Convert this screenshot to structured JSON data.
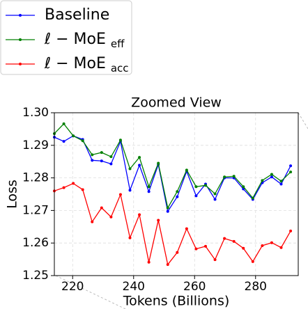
{
  "chart_data": {
    "type": "line",
    "title": "Zoomed View",
    "x_label": "Tokens (Billions)",
    "y_label": "Loss",
    "x": [
      214.0,
      217.1,
      220.2,
      223.3,
      226.4,
      229.5,
      232.6,
      235.7,
      238.8,
      241.9,
      245.0,
      248.1,
      251.2,
      254.3,
      257.4,
      260.5,
      263.6,
      266.7,
      269.8,
      272.9,
      276.0,
      279.1,
      282.2,
      285.3,
      288.4,
      291.5
    ],
    "series": [
      {
        "name": "Baseline",
        "color": "#0000ff",
        "values": [
          1.2925,
          1.2912,
          1.2929,
          1.2918,
          1.2854,
          1.2852,
          1.2843,
          1.2912,
          1.2762,
          1.2839,
          1.2758,
          1.2841,
          1.2697,
          1.2742,
          1.282,
          1.2745,
          1.2781,
          1.2734,
          1.28,
          1.28,
          1.2766,
          1.2734,
          1.2785,
          1.2803,
          1.2781,
          1.2837
        ]
      },
      {
        "name": "ℓ − MoE eff",
        "color": "#008000",
        "values": [
          1.2936,
          1.2966,
          1.2929,
          1.2914,
          1.2871,
          1.2878,
          1.2865,
          1.2916,
          1.2828,
          1.2863,
          1.2773,
          1.2845,
          1.2708,
          1.2758,
          1.2824,
          1.2773,
          1.2777,
          1.2751,
          1.2803,
          1.2805,
          1.2773,
          1.2738,
          1.2792,
          1.2811,
          1.279,
          1.2818
        ]
      },
      {
        "name": "ℓ − MoE acc",
        "color": "#ff0000",
        "values": [
          1.276,
          1.277,
          1.2783,
          1.2764,
          1.2665,
          1.2708,
          1.268,
          1.2749,
          1.2616,
          1.2687,
          1.2541,
          1.267,
          1.2534,
          1.2571,
          1.2644,
          1.2582,
          1.259,
          1.2549,
          1.2614,
          1.2605,
          1.2584,
          1.2543,
          1.2592,
          1.2601,
          1.2586,
          1.2637
        ]
      }
    ],
    "xlim": [
      214,
      294
    ],
    "xticks": [
      220,
      240,
      260,
      280
    ],
    "ylim": [
      1.25,
      1.3
    ],
    "yticks": [
      {
        "value": 1.25,
        "label": "1.25"
      },
      {
        "value": 1.26,
        "label": "1.26"
      },
      {
        "value": 1.27,
        "label": "1.27"
      },
      {
        "value": 1.28,
        "label": "1.28"
      },
      {
        "value": 1.29,
        "label": "1.29"
      },
      {
        "value": 1.3,
        "label": "1.30"
      }
    ],
    "grid": true
  }
}
